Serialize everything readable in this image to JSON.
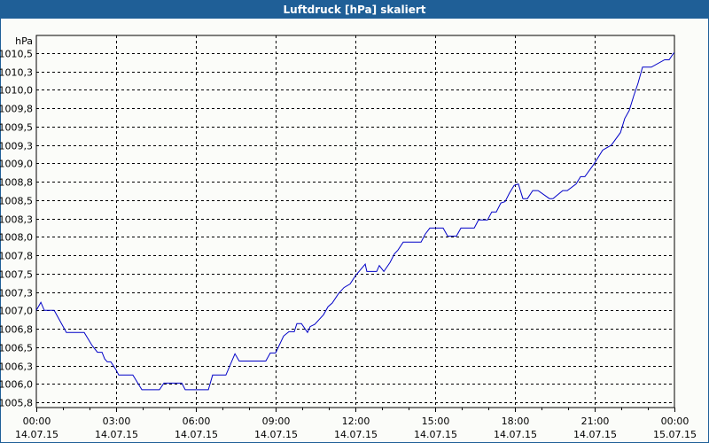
{
  "window": {
    "title": "Luftdruck [hPa] skaliert"
  },
  "colors": {
    "titlebar": "#1f5f97",
    "background": "#fbfcf9",
    "line": "#0000c8",
    "grid": "#000000"
  },
  "chart_data": {
    "type": "line",
    "title": "Luftdruck [hPa] skaliert",
    "xlabel": "",
    "ylabel": "hPa",
    "ylim": [
      1005.75,
      1010.5
    ],
    "xlim": [
      "14.07.15 00:00",
      "15.07.15 00:00"
    ],
    "grid": true,
    "grid_style": "dashed",
    "legend": null,
    "y_ticks": [
      "1010,5",
      "1010,3",
      "1010,0",
      "1009,8",
      "1009,5",
      "1009,3",
      "1009,0",
      "1008,8",
      "1008,5",
      "1008,3",
      "1008,0",
      "1007,8",
      "1007,5",
      "1007,3",
      "1007,0",
      "1006,8",
      "1006,5",
      "1006,3",
      "1006,0",
      "1005,8"
    ],
    "y_tick_values": [
      1010.5,
      1010.25,
      1010.0,
      1009.75,
      1009.5,
      1009.25,
      1009.0,
      1008.75,
      1008.5,
      1008.25,
      1008.0,
      1007.75,
      1007.5,
      1007.25,
      1007.0,
      1006.75,
      1006.5,
      1006.25,
      1006.0,
      1005.75
    ],
    "x_ticks": [
      {
        "time": "00:00",
        "date": "14.07.15"
      },
      {
        "time": "03:00",
        "date": "14.07.15"
      },
      {
        "time": "06:00",
        "date": "14.07.15"
      },
      {
        "time": "09:00",
        "date": "14.07.15"
      },
      {
        "time": "12:00",
        "date": "14.07.15"
      },
      {
        "time": "15:00",
        "date": "14.07.15"
      },
      {
        "time": "18:00",
        "date": "14.07.15"
      },
      {
        "time": "21:00",
        "date": "14.07.15"
      },
      {
        "time": "00:00",
        "date": "15.07.15"
      }
    ],
    "series": [
      {
        "name": "Luftdruck",
        "unit": "hPa",
        "x_hours": [
          0,
          0.17,
          0.3,
          0.67,
          1.13,
          1.8,
          2.1,
          2.3,
          2.47,
          2.57,
          2.67,
          2.8,
          3.0,
          3.1,
          3.63,
          3.97,
          4.63,
          4.8,
          5.47,
          5.6,
          6.47,
          6.63,
          7.13,
          7.47,
          7.63,
          8.63,
          8.8,
          9.0,
          9.3,
          9.5,
          9.7,
          9.8,
          9.97,
          10.2,
          10.3,
          10.47,
          10.8,
          10.97,
          11.13,
          11.37,
          11.57,
          11.8,
          12.0,
          12.37,
          12.43,
          12.8,
          12.9,
          13.07,
          13.3,
          13.47,
          13.6,
          13.8,
          14.47,
          14.63,
          14.8,
          15.3,
          15.47,
          15.8,
          15.97,
          16.47,
          16.63,
          16.97,
          17.13,
          17.3,
          17.47,
          17.63,
          17.8,
          17.97,
          18.13,
          18.3,
          18.47,
          18.67,
          18.87,
          19.3,
          19.43,
          19.8,
          19.97,
          20.3,
          20.47,
          20.63,
          20.97,
          21.3,
          21.63,
          21.97,
          22.13,
          22.3,
          22.47,
          22.63,
          22.8,
          23.13,
          23.63,
          23.8,
          23.97,
          24.0
        ],
        "values": [
          1007.0,
          1007.11,
          1007.0,
          1007.0,
          1006.7,
          1006.7,
          1006.52,
          1006.43,
          1006.43,
          1006.34,
          1006.3,
          1006.3,
          1006.19,
          1006.12,
          1006.12,
          1005.92,
          1005.92,
          1006.01,
          1006.01,
          1005.92,
          1005.92,
          1006.12,
          1006.12,
          1006.41,
          1006.31,
          1006.31,
          1006.42,
          1006.42,
          1006.65,
          1006.71,
          1006.71,
          1006.82,
          1006.82,
          1006.7,
          1006.78,
          1006.81,
          1006.94,
          1007.05,
          1007.1,
          1007.23,
          1007.31,
          1007.36,
          1007.47,
          1007.63,
          1007.53,
          1007.53,
          1007.61,
          1007.53,
          1007.65,
          1007.77,
          1007.82,
          1007.93,
          1007.93,
          1008.04,
          1008.12,
          1008.12,
          1008.01,
          1008.01,
          1008.12,
          1008.12,
          1008.23,
          1008.23,
          1008.34,
          1008.34,
          1008.46,
          1008.48,
          1008.6,
          1008.7,
          1008.72,
          1008.52,
          1008.52,
          1008.63,
          1008.63,
          1008.52,
          1008.52,
          1008.63,
          1008.63,
          1008.72,
          1008.82,
          1008.82,
          1008.99,
          1009.18,
          1009.25,
          1009.42,
          1009.61,
          1009.72,
          1009.92,
          1010.09,
          1010.31,
          1010.31,
          1010.41,
          1010.41,
          1010.5,
          1010.5
        ]
      }
    ]
  }
}
